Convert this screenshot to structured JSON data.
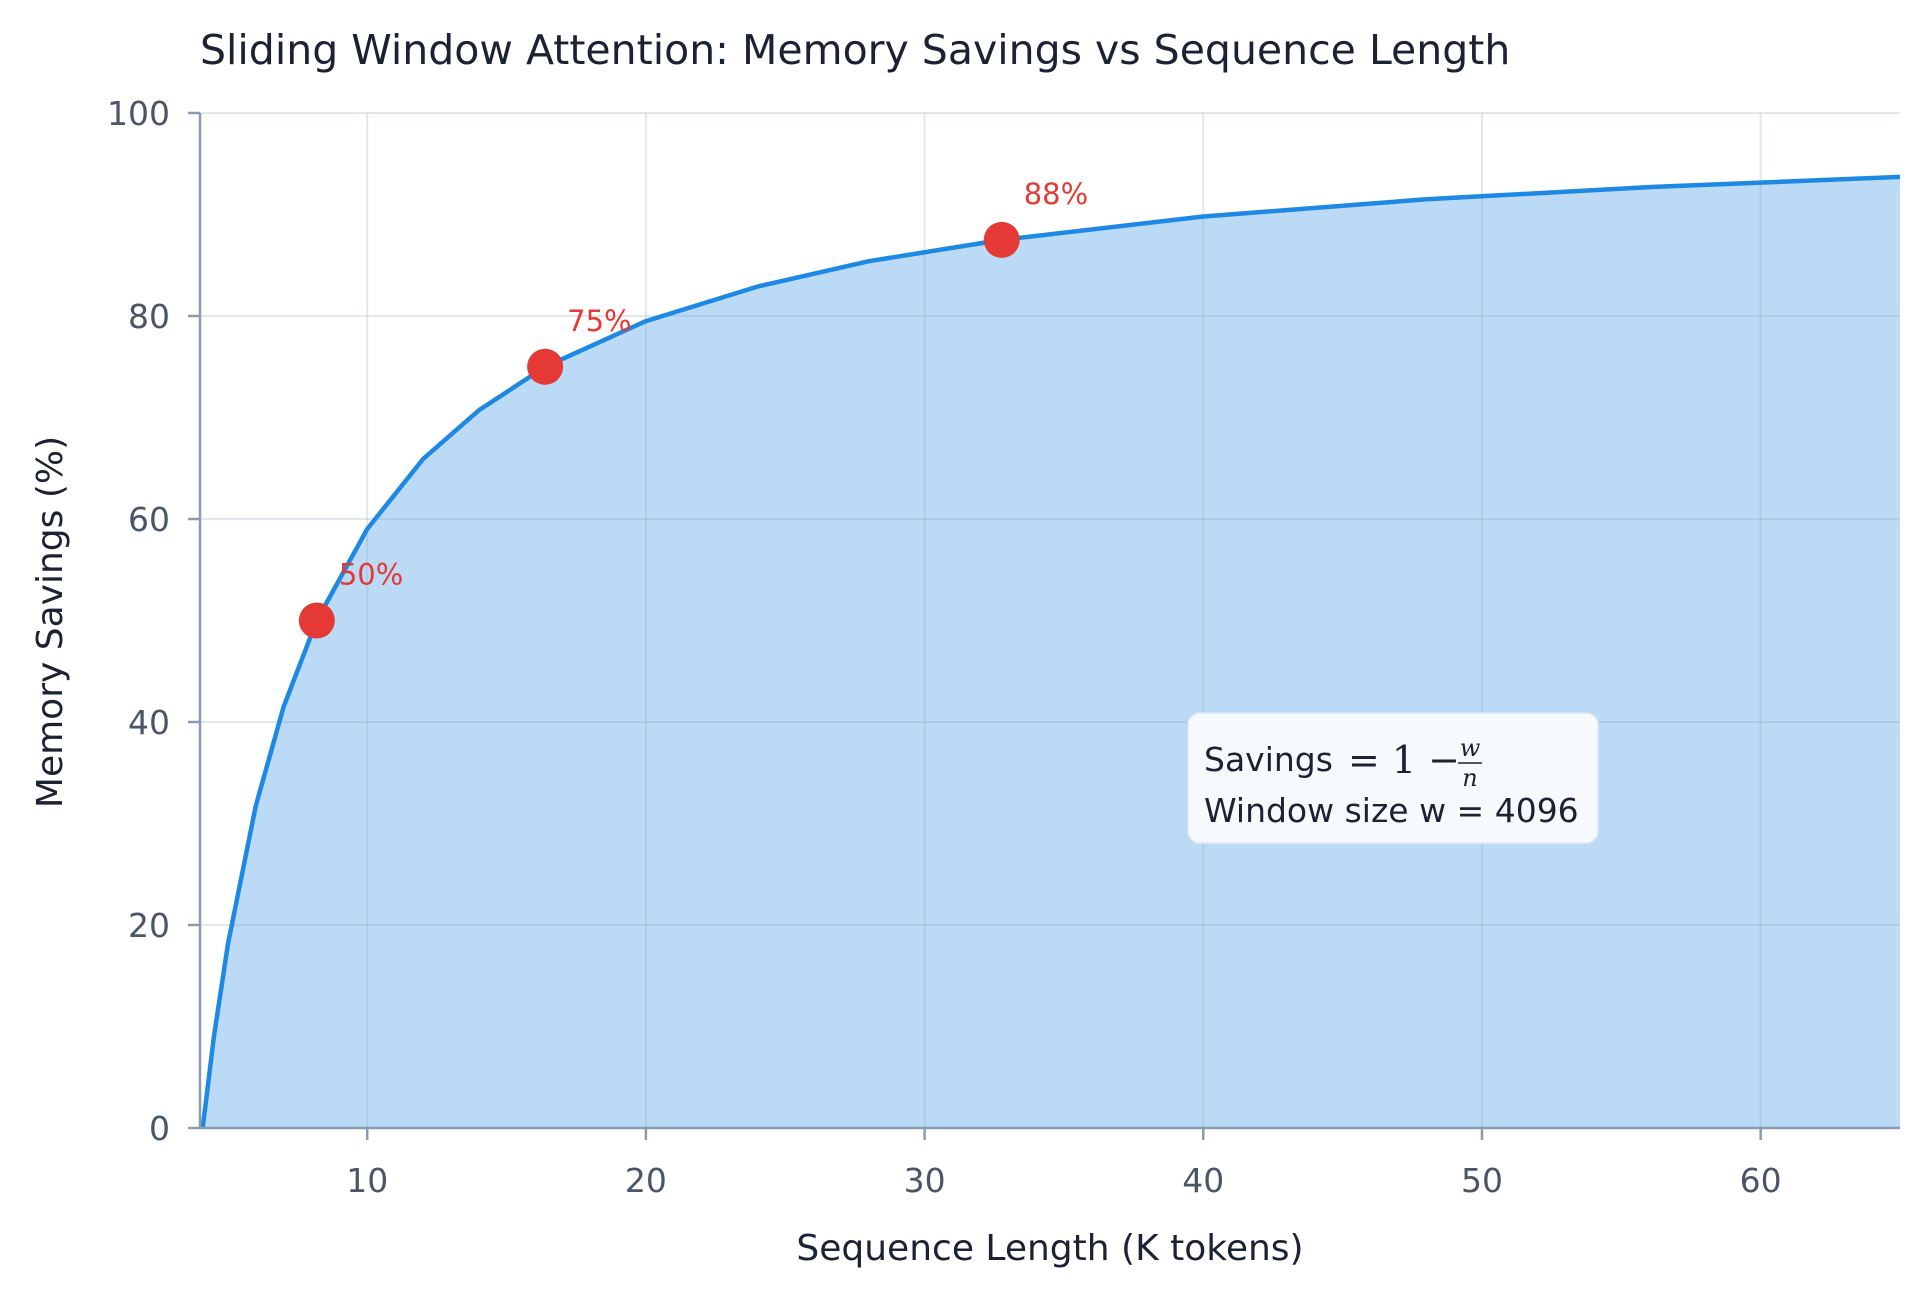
{
  "chart_data": {
    "type": "area",
    "title": "Sliding Window Attention: Memory Savings vs Sequence Length",
    "xlabel": "Sequence Length (K tokens)",
    "ylabel": "Memory Savings (%)",
    "xlim": [
      4,
      65
    ],
    "ylim": [
      0,
      100
    ],
    "x_ticks": [
      10,
      20,
      30,
      40,
      50,
      60
    ],
    "y_ticks": [
      0,
      20,
      40,
      60,
      80,
      100
    ],
    "grid": true,
    "window_size": 4096,
    "series": [
      {
        "curve": "savings = 1 - w/n",
        "x": [
          4.096,
          4.5,
          5,
          6,
          7,
          8.192,
          10,
          12,
          14,
          16.384,
          20,
          24,
          28,
          32.768,
          40,
          48,
          56,
          65
        ],
        "values": [
          0,
          9.0,
          18.1,
          31.7,
          41.5,
          50,
          59.0,
          65.9,
          70.7,
          75,
          79.5,
          82.9,
          85.4,
          87.5,
          89.8,
          91.5,
          92.7,
          93.7
        ],
        "color": "#1e88e5",
        "fill": "#bbdaf5"
      }
    ],
    "highlight_points": [
      {
        "x": 8.192,
        "y": 50,
        "label": "50%"
      },
      {
        "x": 16.384,
        "y": 75,
        "label": "75%"
      },
      {
        "x": 32.768,
        "y": 87.5,
        "label": "88%"
      }
    ],
    "highlight_color": "#e53935",
    "annotation": {
      "line1_prefix": "Savings",
      "formula_lhs": "= 1 −",
      "formula_num": "w",
      "formula_den": "n",
      "line2": "Window size w = 4096"
    }
  }
}
